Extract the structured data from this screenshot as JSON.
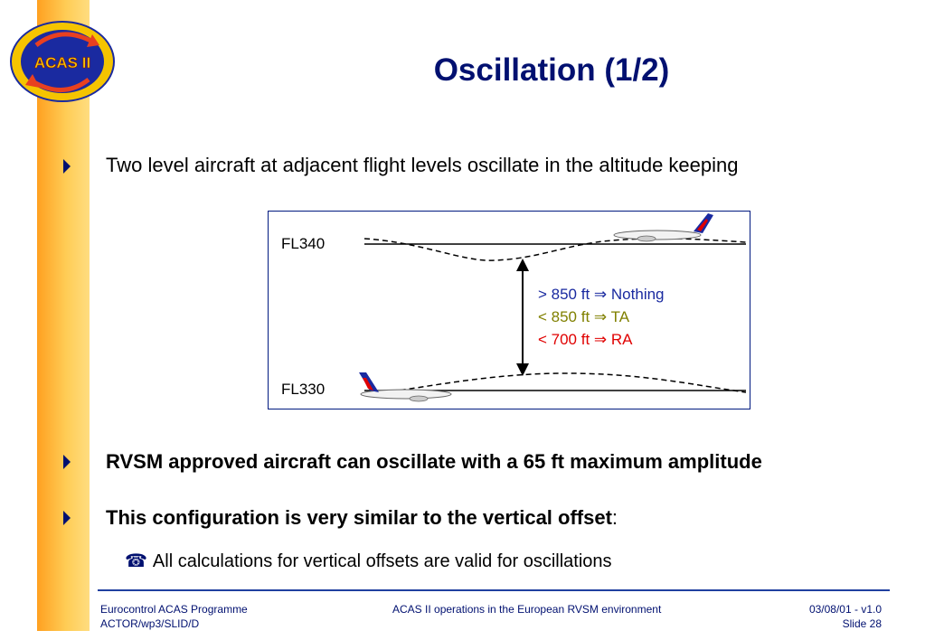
{
  "logo": {
    "text": "ACAS II",
    "colors": {
      "ring": "#f5c400",
      "disc": "#1a2aa0",
      "arrow": "#e84020",
      "text": "#f5c400"
    }
  },
  "title": "Oscillation (1/2)",
  "bullets": [
    {
      "text": "Two level aircraft at adjacent flight levels oscillate in the altitude keeping"
    },
    {
      "text": "RVSM approved aircraft can oscillate with a 65 ft maximum amplitude"
    },
    {
      "text": "This configuration is very similar to the vertical offset",
      "suffix": ":"
    }
  ],
  "sub_bullet": {
    "icon": "phone-icon",
    "text": "All calculations for vertical offsets are valid for oscillations"
  },
  "diagram": {
    "upper_level": "FL340",
    "lower_level": "FL330",
    "legend": [
      {
        "left": "> 850 ft",
        "arrow": "⇒",
        "right": "Nothing",
        "color": "#1a2aa0"
      },
      {
        "left": "< 850 ft",
        "arrow": "⇒",
        "right": "TA",
        "color": "#808000"
      },
      {
        "left": "< 700 ft",
        "arrow": "⇒",
        "right": "RA",
        "color": "#e00000"
      }
    ]
  },
  "footer": {
    "left_line1": "Eurocontrol ACAS Programme",
    "left_line2": "ACTOR/wp3/SLID/D",
    "center": "ACAS II operations in the European RVSM environment",
    "right_line1": "03/08/01 - v1.0",
    "right_line2": "Slide 28"
  },
  "colors": {
    "accent": "#001070",
    "sidebar": "#ffb030"
  }
}
